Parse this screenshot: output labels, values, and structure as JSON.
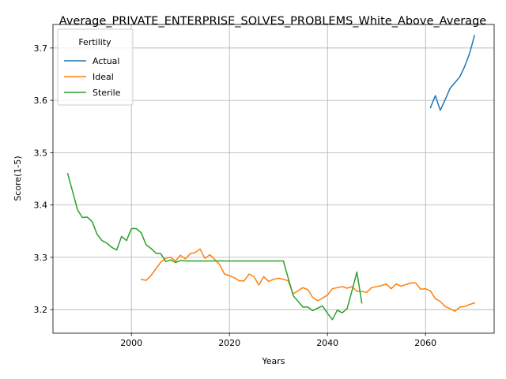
{
  "chart_data": {
    "type": "line",
    "title": "Average_PRIVATE_ENTERPRISE_SOLVES_PROBLEMS_White_Above_Average",
    "xlabel": "Years",
    "ylabel": "Score(1-5)",
    "xlim": [
      1984,
      2074
    ],
    "ylim": [
      3.155,
      3.745
    ],
    "xticks": [
      2000,
      2020,
      2040,
      2060
    ],
    "yticks": [
      3.2,
      3.3,
      3.4,
      3.5,
      3.6,
      3.7
    ],
    "ytick_labels": [
      "3.2",
      "3.3",
      "3.4",
      "3.5",
      "3.6",
      "3.7"
    ],
    "grid": true,
    "legend": {
      "title": "Fertility",
      "position": "top-left"
    },
    "series": [
      {
        "name": "Actual",
        "color": "#1f77b4",
        "x": [
          2061,
          2062,
          2063,
          2064,
          2065,
          2066,
          2067,
          2068,
          2069,
          2070
        ],
        "y": [
          3.586,
          3.609,
          3.581,
          3.601,
          3.623,
          3.634,
          3.645,
          3.665,
          3.69,
          3.724
        ]
      },
      {
        "name": "Ideal",
        "color": "#ff7f0e",
        "x": [
          2002,
          2003,
          2004,
          2005,
          2006,
          2007,
          2008,
          2009,
          2010,
          2011,
          2012,
          2013,
          2014,
          2015,
          2016,
          2017,
          2018,
          2019,
          2020,
          2021,
          2022,
          2023,
          2024,
          2025,
          2026,
          2027,
          2028,
          2029,
          2030,
          2031,
          2032,
          2033,
          2034,
          2035,
          2036,
          2037,
          2038,
          2039,
          2040,
          2041,
          2042,
          2043,
          2044,
          2045,
          2046,
          2047,
          2048,
          2049,
          2050,
          2051,
          2052,
          2053,
          2054,
          2055,
          2056,
          2057,
          2058,
          2059,
          2060,
          2061,
          2062,
          2063,
          2064,
          2065,
          2066,
          2067,
          2068,
          2069,
          2070
        ],
        "y": [
          3.258,
          3.256,
          3.265,
          3.278,
          3.291,
          3.298,
          3.3,
          3.293,
          3.304,
          3.297,
          3.307,
          3.309,
          3.316,
          3.298,
          3.305,
          3.296,
          3.286,
          3.268,
          3.265,
          3.261,
          3.255,
          3.255,
          3.268,
          3.263,
          3.247,
          3.263,
          3.254,
          3.258,
          3.26,
          3.258,
          3.255,
          3.23,
          3.236,
          3.242,
          3.238,
          3.223,
          3.217,
          3.222,
          3.228,
          3.24,
          3.242,
          3.244,
          3.241,
          3.244,
          3.235,
          3.235,
          3.233,
          3.242,
          3.244,
          3.246,
          3.249,
          3.24,
          3.249,
          3.245,
          3.248,
          3.251,
          3.251,
          3.239,
          3.24,
          3.236,
          3.221,
          3.216,
          3.206,
          3.202,
          3.197,
          3.205,
          3.206,
          3.21,
          3.213
        ]
      },
      {
        "name": "Sterile",
        "color": "#2ca02c",
        "x": [
          1987,
          1988,
          1989,
          1990,
          1991,
          1992,
          1993,
          1994,
          1995,
          1996,
          1997,
          1998,
          1999,
          2000,
          2001,
          2002,
          2003,
          2004,
          2005,
          2006,
          2007,
          2008,
          2009,
          2010,
          2011,
          2012,
          2013,
          2014,
          2015,
          2016,
          2017,
          2018,
          2019,
          2020,
          2021,
          2022,
          2023,
          2024,
          2025,
          2026,
          2027,
          2028,
          2029,
          2030,
          2031,
          2032,
          2033,
          2034,
          2035,
          2036,
          2037,
          2038,
          2039,
          2040,
          2041,
          2042,
          2043,
          2044,
          2045,
          2046,
          2047
        ],
        "y": [
          3.46,
          3.426,
          3.391,
          3.376,
          3.377,
          3.368,
          3.344,
          3.332,
          3.327,
          3.319,
          3.314,
          3.34,
          3.332,
          3.355,
          3.355,
          3.347,
          3.324,
          3.317,
          3.308,
          3.307,
          3.292,
          3.295,
          3.29,
          3.294,
          3.293,
          3.293,
          3.293,
          3.293,
          3.293,
          3.293,
          3.293,
          3.293,
          3.293,
          3.293,
          3.293,
          3.293,
          3.293,
          3.293,
          3.293,
          3.293,
          3.293,
          3.293,
          3.293,
          3.293,
          3.293,
          3.26,
          3.227,
          3.216,
          3.205,
          3.205,
          3.198,
          3.203,
          3.207,
          3.193,
          3.181,
          3.199,
          3.194,
          3.202,
          3.236,
          3.272,
          3.213
        ]
      }
    ]
  }
}
